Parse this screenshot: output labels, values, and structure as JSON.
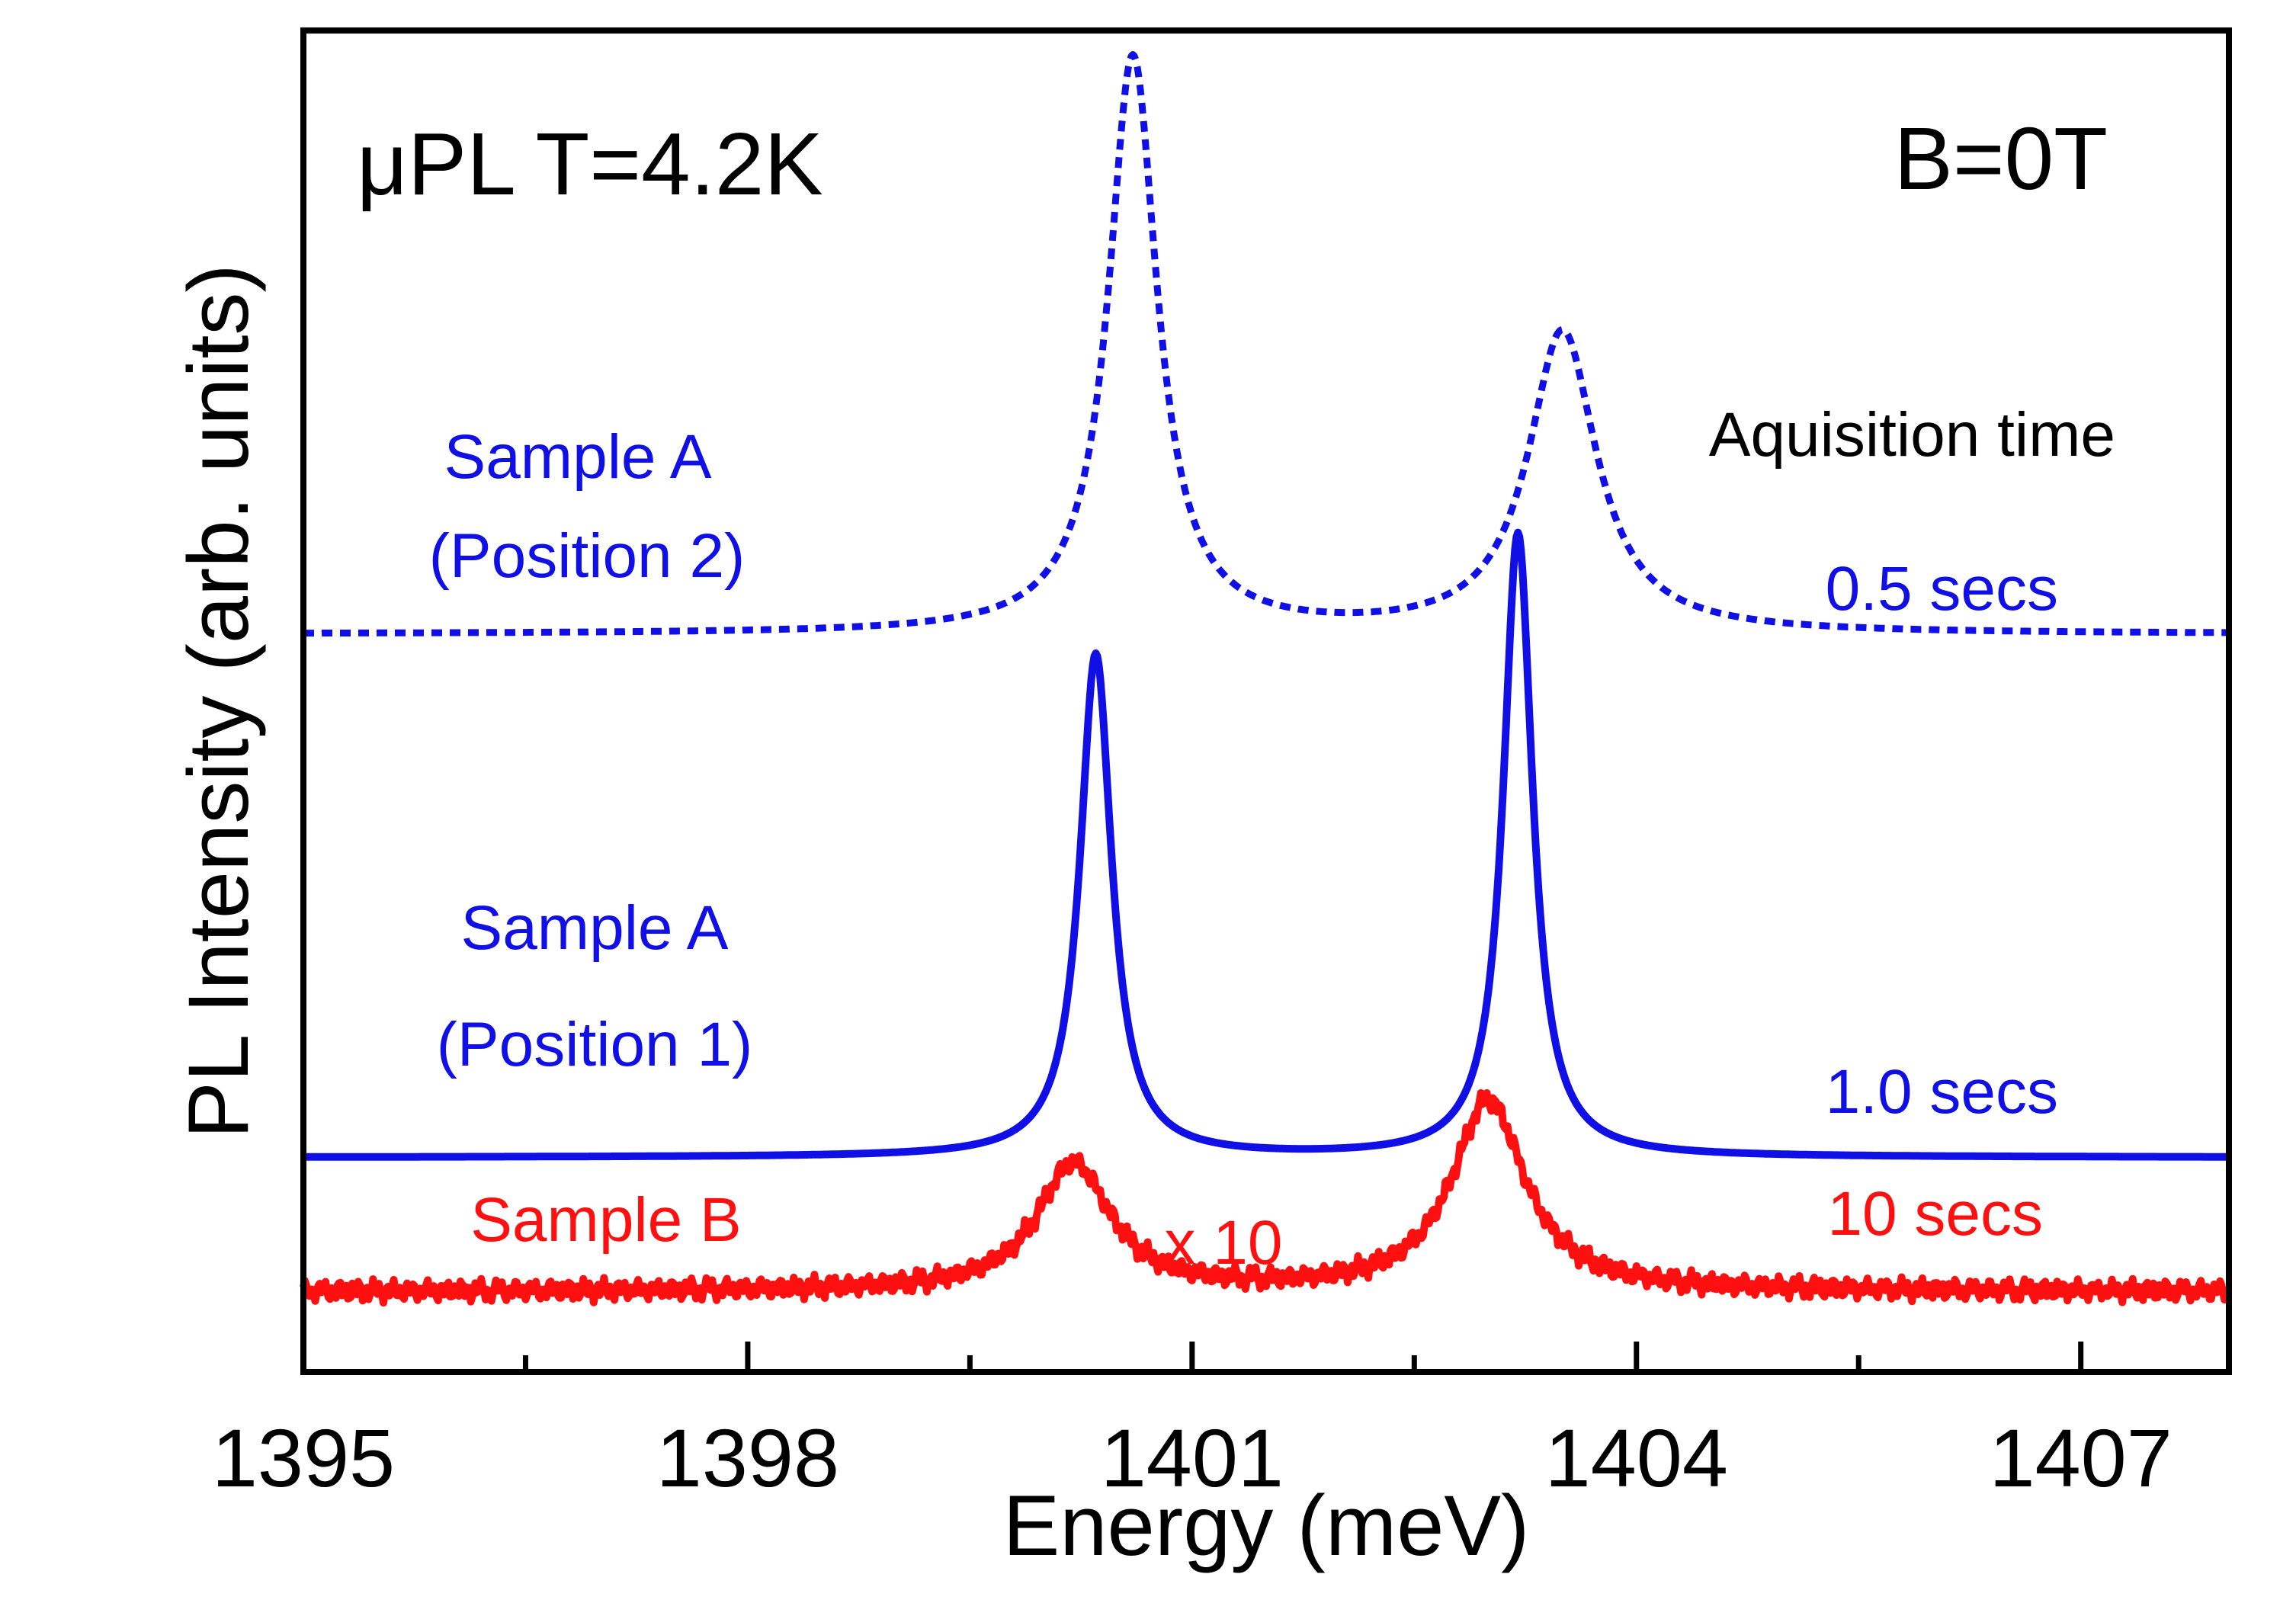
{
  "chart_data": {
    "type": "line",
    "xlabel": "Energy (meV)",
    "ylabel": "PL Intensity (arb. units)",
    "xlim": [
      1395,
      1408
    ],
    "ylim": [
      0,
      100
    ],
    "x_ticks": [
      1395,
      1398,
      1401,
      1404,
      1407
    ],
    "x_minor_ticks": [
      1396.5,
      1399.5,
      1402.5,
      1405.5
    ],
    "annotations": {
      "condition": "μPL T=4.2K",
      "field": "B=0T",
      "acquisition_heading": "Aquisition time",
      "scale_note": "x 10"
    },
    "series": [
      {
        "name": "Sample A (Position 2)",
        "label_line1": "Sample A",
        "label_line2": "(Position 2)",
        "acquisition": "0.5 secs",
        "color": "#1010e6",
        "style": "dotted",
        "baseline": 55,
        "peaks": [
          {
            "energy": 1400.6,
            "height": 43,
            "width": 0.2
          },
          {
            "energy": 1403.5,
            "height": 22.5,
            "width": 0.28
          }
        ]
      },
      {
        "name": "Sample A (Position 1)",
        "label_line1": "Sample A",
        "label_line2": "(Position 1)",
        "acquisition": "1.0 secs",
        "color": "#1010e6",
        "style": "solid",
        "baseline": 16,
        "peaks": [
          {
            "energy": 1400.35,
            "height": 37.5,
            "width": 0.13
          },
          {
            "energy": 1403.2,
            "height": 46.5,
            "width": 0.12
          }
        ]
      },
      {
        "name": "Sample B",
        "label_line1": "Sample B",
        "acquisition": "10 secs",
        "scale_factor": "x 10",
        "color": "#ff1010",
        "style": "solid",
        "baseline": 6,
        "peaks": [
          {
            "energy": 1400.2,
            "height": 9.5,
            "width": 0.3
          },
          {
            "energy": 1403.0,
            "height": 14.2,
            "width": 0.3
          }
        ]
      }
    ]
  }
}
